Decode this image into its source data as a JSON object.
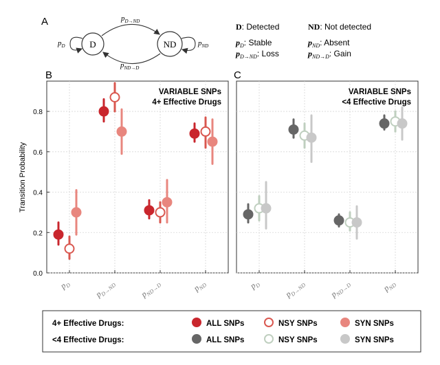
{
  "panel_a": {
    "label": "A",
    "state_d": "D",
    "state_nd": "ND",
    "arrow_top": "p",
    "arrow_top_sub": "D→ND",
    "arrow_bottom": "p",
    "arrow_bottom_sub": "ND→D",
    "loop_left": "p",
    "loop_left_sub": "D",
    "loop_right": "p",
    "loop_right_sub": "ND",
    "legend": {
      "d_key": "D",
      "d_text": ": Detected",
      "nd_key": "ND",
      "nd_text": ": Not detected",
      "pd_key": "p",
      "pd_sub": "D",
      "pd_text": ":    Stable",
      "pdnd_key": "p",
      "pdnd_sub": "D→ND",
      "pdnd_text": ": Loss",
      "pnd_key": "p",
      "pnd_sub": "ND",
      "pnd_text": ":   Absent",
      "pndd_key": "p",
      "pndd_sub": "ND→D",
      "pndd_text": ": Gain"
    }
  },
  "ylabel": "Transition Probability",
  "legend": {
    "row1_label": "4+ Effective Drugs:",
    "row2_label": "<4 Effective Drugs:",
    "items": [
      "ALL SNPs",
      "NSY SNPs",
      "SYN SNPs"
    ]
  },
  "colors": {
    "red_all": "#c9262d",
    "red_nsy": "#d9574f",
    "red_syn": "#e8867e",
    "grey_all": "#666666",
    "grey_nsy": "#bfcfbf",
    "grey_syn": "#c8c8c8"
  },
  "chart_data": [
    {
      "type": "scatter",
      "panel_label": "B",
      "annotation": [
        "VARIABLE SNPs",
        "4+ Effective Drugs"
      ],
      "categories": [
        {
          "base": "p",
          "sub": "D"
        },
        {
          "base": "p",
          "sub": "D→ND"
        },
        {
          "base": "p",
          "sub": "ND→D"
        },
        {
          "base": "p",
          "sub": "ND"
        }
      ],
      "ylim": [
        0,
        0.95
      ],
      "yticks": [
        "0.0",
        "0.2",
        "0.4",
        "0.6",
        "0.8"
      ],
      "series": [
        {
          "name": "ALL SNPs",
          "style": "filled",
          "color": "#c9262d",
          "values": [
            0.19,
            0.8,
            0.31,
            0.69
          ],
          "err_low": [
            0.14,
            0.75,
            0.27,
            0.65
          ],
          "err_high": [
            0.25,
            0.86,
            0.36,
            0.74
          ]
        },
        {
          "name": "NSY SNPs",
          "style": "open",
          "color": "#d9574f",
          "values": [
            0.12,
            0.87,
            0.3,
            0.7
          ],
          "err_low": [
            0.07,
            0.8,
            0.25,
            0.62
          ],
          "err_high": [
            0.18,
            0.94,
            0.35,
            0.77
          ]
        },
        {
          "name": "SYN SNPs",
          "style": "filled",
          "color": "#e8867e",
          "values": [
            0.3,
            0.7,
            0.35,
            0.65
          ],
          "err_low": [
            0.19,
            0.59,
            0.25,
            0.54
          ],
          "err_high": [
            0.41,
            0.81,
            0.46,
            0.76
          ]
        }
      ]
    },
    {
      "type": "scatter",
      "panel_label": "C",
      "annotation": [
        "VARIABLE SNPs",
        "<4 Effective Drugs"
      ],
      "categories": [
        {
          "base": "p",
          "sub": "D"
        },
        {
          "base": "p",
          "sub": "D→ND"
        },
        {
          "base": "p",
          "sub": "ND→D"
        },
        {
          "base": "p",
          "sub": "ND"
        }
      ],
      "ylim": [
        0,
        0.95
      ],
      "series": [
        {
          "name": "ALL SNPs",
          "style": "filled",
          "color": "#666666",
          "values": [
            0.29,
            0.71,
            0.26,
            0.74
          ],
          "err_low": [
            0.25,
            0.67,
            0.23,
            0.71
          ],
          "err_high": [
            0.34,
            0.76,
            0.29,
            0.78
          ]
        },
        {
          "name": "NSY SNPs",
          "style": "open",
          "color": "#bfcfbf",
          "values": [
            0.32,
            0.68,
            0.25,
            0.75
          ],
          "err_low": [
            0.26,
            0.62,
            0.21,
            0.7
          ],
          "err_high": [
            0.38,
            0.74,
            0.3,
            0.8
          ]
        },
        {
          "name": "SYN SNPs",
          "style": "filled",
          "color": "#c8c8c8",
          "values": [
            0.32,
            0.67,
            0.25,
            0.74
          ],
          "err_low": [
            0.22,
            0.55,
            0.17,
            0.66
          ],
          "err_high": [
            0.45,
            0.78,
            0.33,
            0.82
          ]
        }
      ]
    }
  ]
}
